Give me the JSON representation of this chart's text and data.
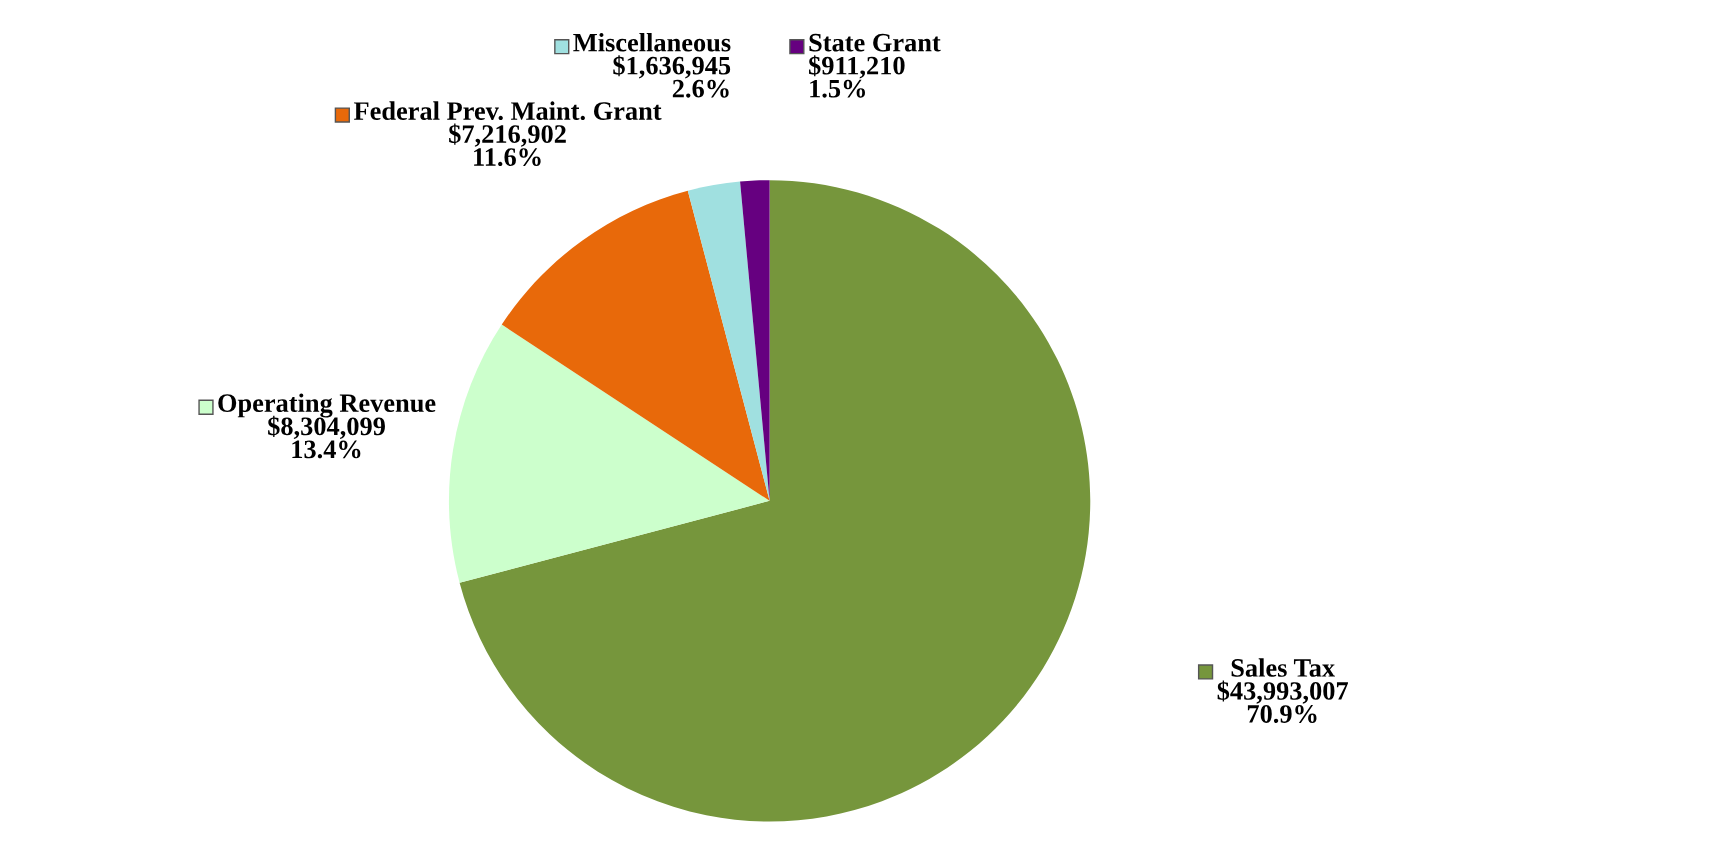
{
  "chart_data": {
    "type": "pie",
    "categories": [
      "Sales Tax",
      "Operating Revenue",
      "Federal Prev. Maint. Grant",
      "Miscellaneous",
      "State Grant"
    ],
    "values": [
      43993007,
      8304099,
      7216902,
      1636945,
      911210
    ],
    "legend": "top left",
    "colors": [
      "#76963c",
      "#ccffcc",
      "#e8690a",
      "#a0e0e0",
      "#660080"
    ],
    "value_labels": [
      "$43,993,007\n70.9%",
      "$8,304,099\n13.4%",
      "$7,216,902\n11.6%",
      "$1,636,945\n2.6%",
      "$911,210\n1.5%"
    ]
  }
}
